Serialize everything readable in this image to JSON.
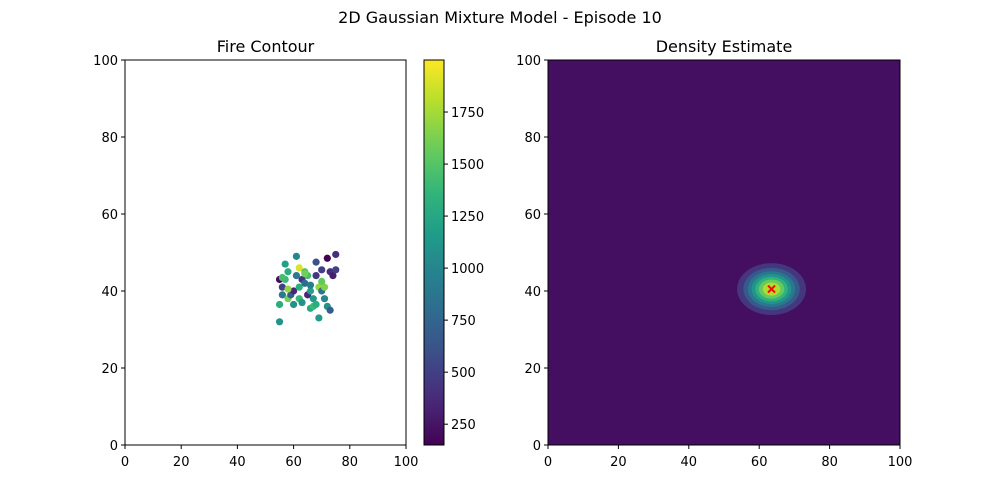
{
  "figure": {
    "suptitle": "2D Gaussian Mixture Model - Episode 10"
  },
  "chart_data": [
    {
      "type": "scatter",
      "title": "Fire Contour",
      "xlabel": "",
      "ylabel": "",
      "xlim": [
        0,
        100
      ],
      "ylim": [
        0,
        100
      ],
      "x_ticks": [
        0,
        20,
        40,
        60,
        80,
        100
      ],
      "y_ticks": [
        0,
        20,
        40,
        60,
        80,
        100
      ],
      "grid": false,
      "colormap": "viridis",
      "colorbar": {
        "range": [
          150,
          2000
        ],
        "ticks": [
          250,
          500,
          750,
          1000,
          1250,
          1500,
          1750
        ]
      },
      "points": [
        {
          "x": 55,
          "y": 43,
          "c": 200
        },
        {
          "x": 56,
          "y": 41,
          "c": 500
        },
        {
          "x": 57,
          "y": 47,
          "c": 1200
        },
        {
          "x": 58,
          "y": 45,
          "c": 1300
        },
        {
          "x": 57,
          "y": 43,
          "c": 1400
        },
        {
          "x": 56,
          "y": 39,
          "c": 900
        },
        {
          "x": 58,
          "y": 38,
          "c": 1600
        },
        {
          "x": 55,
          "y": 36.5,
          "c": 1300
        },
        {
          "x": 55,
          "y": 32,
          "c": 1100
        },
        {
          "x": 59,
          "y": 39,
          "c": 700
        },
        {
          "x": 60,
          "y": 40,
          "c": 350
        },
        {
          "x": 61,
          "y": 49,
          "c": 1000
        },
        {
          "x": 62,
          "y": 41,
          "c": 1300
        },
        {
          "x": 62,
          "y": 46,
          "c": 1900
        },
        {
          "x": 62,
          "y": 38,
          "c": 1400
        },
        {
          "x": 63,
          "y": 37,
          "c": 1100
        },
        {
          "x": 63,
          "y": 43,
          "c": 450
        },
        {
          "x": 64,
          "y": 45,
          "c": 1500
        },
        {
          "x": 64,
          "y": 42,
          "c": 800
        },
        {
          "x": 65,
          "y": 44,
          "c": 1450
        },
        {
          "x": 65,
          "y": 39,
          "c": 350
        },
        {
          "x": 66,
          "y": 40,
          "c": 1200
        },
        {
          "x": 66,
          "y": 35.5,
          "c": 1250
        },
        {
          "x": 67,
          "y": 38,
          "c": 1150
        },
        {
          "x": 67,
          "y": 36,
          "c": 1400
        },
        {
          "x": 68,
          "y": 47.5,
          "c": 600
        },
        {
          "x": 68,
          "y": 44,
          "c": 450
        },
        {
          "x": 69,
          "y": 41,
          "c": 1700
        },
        {
          "x": 69,
          "y": 33,
          "c": 1150
        },
        {
          "x": 70,
          "y": 40,
          "c": 850
        },
        {
          "x": 70,
          "y": 45.5,
          "c": 500
        },
        {
          "x": 71,
          "y": 41,
          "c": 1650
        },
        {
          "x": 71,
          "y": 38,
          "c": 1000
        },
        {
          "x": 72,
          "y": 36,
          "c": 1100
        },
        {
          "x": 72,
          "y": 48.5,
          "c": 150
        },
        {
          "x": 73,
          "y": 45,
          "c": 400
        },
        {
          "x": 73,
          "y": 35,
          "c": 700
        },
        {
          "x": 74,
          "y": 44,
          "c": 300
        },
        {
          "x": 75,
          "y": 49.5,
          "c": 400
        },
        {
          "x": 75,
          "y": 45.5,
          "c": 500
        },
        {
          "x": 60,
          "y": 36.5,
          "c": 1100
        },
        {
          "x": 61,
          "y": 44,
          "c": 900
        },
        {
          "x": 64,
          "y": 44.5,
          "c": 1600
        },
        {
          "x": 66,
          "y": 41.5,
          "c": 950
        },
        {
          "x": 58,
          "y": 40.5,
          "c": 1700
        },
        {
          "x": 68,
          "y": 36.5,
          "c": 1300
        },
        {
          "x": 70,
          "y": 42.5,
          "c": 1550
        },
        {
          "x": 56,
          "y": 43.5,
          "c": 1450
        }
      ]
    },
    {
      "type": "heatmap",
      "title": "Density Estimate",
      "xlabel": "",
      "ylabel": "",
      "xlim": [
        0,
        100
      ],
      "ylim": [
        0,
        100
      ],
      "x_ticks": [
        0,
        20,
        40,
        60,
        80,
        100
      ],
      "y_ticks": [
        0,
        20,
        40,
        60,
        80,
        100
      ],
      "grid": false,
      "colormap": "viridis",
      "gaussian": {
        "mean": [
          63.5,
          40.5
        ],
        "sd": [
          4.8,
          3.3
        ]
      },
      "contour_levels": 8,
      "marker": {
        "x": 63.5,
        "y": 40.5,
        "symbol": "x",
        "color": "#ff0000"
      }
    }
  ]
}
